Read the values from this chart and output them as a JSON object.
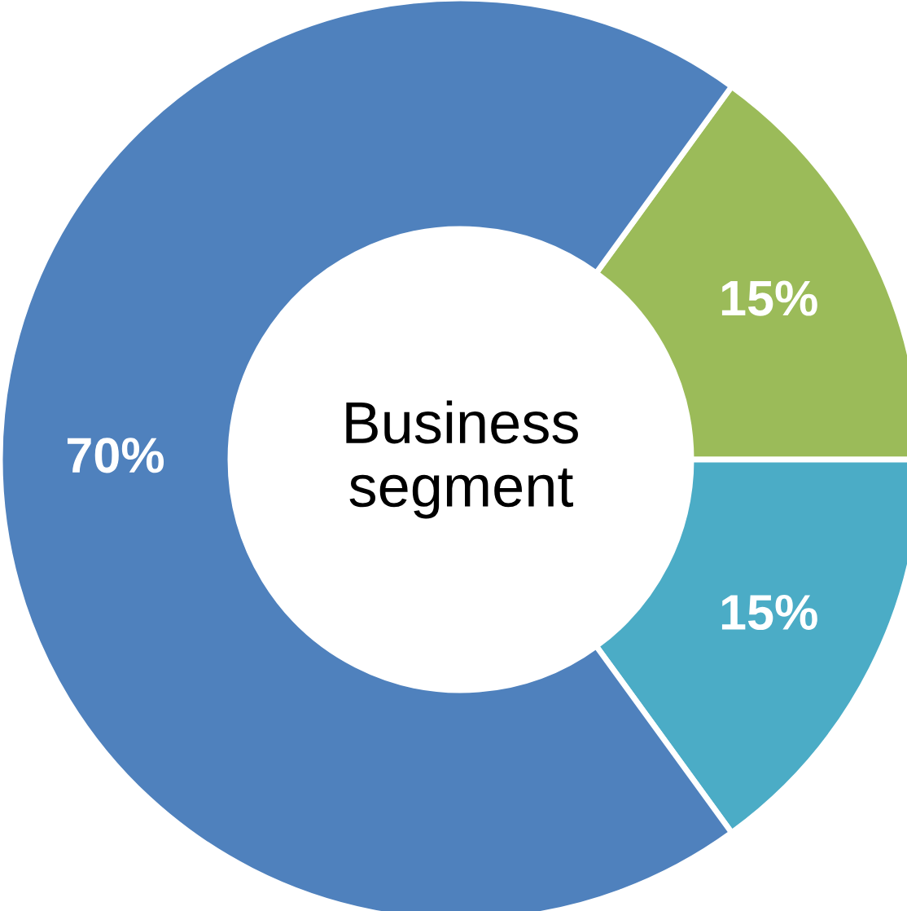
{
  "chart_data": {
    "type": "donut",
    "title": "Business\nsegment",
    "categories": [
      null,
      null,
      null
    ],
    "values": [
      15,
      15,
      70
    ],
    "colors": [
      "#9bbb59",
      "#4bacc6",
      "#4f81bd"
    ],
    "value_labels": [
      "15%",
      "15%",
      "70%"
    ]
  }
}
